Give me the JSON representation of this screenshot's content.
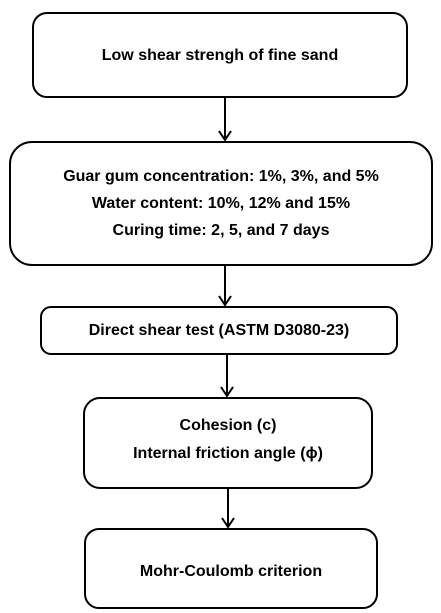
{
  "nodes": [
    {
      "lines": [
        "Low shear strengh of fine sand"
      ]
    },
    {
      "lines": [
        "Guar gum concentration: 1%, 3%, and 5%",
        "Water content: 10%, 12% and 15%",
        "Curing time: 2, 5, and 7 days"
      ]
    },
    {
      "lines": [
        "Direct shear test (ASTM D3080-23)"
      ]
    },
    {
      "lines": [
        "Cohesion (c)",
        "Internal friction angle (ϕ)"
      ]
    },
    {
      "lines": [
        "Mohr-Coulomb criterion"
      ]
    }
  ]
}
